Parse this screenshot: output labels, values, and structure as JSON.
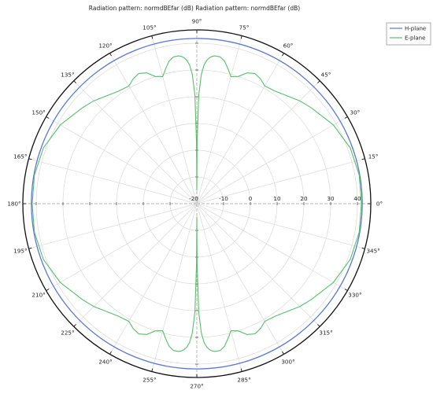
{
  "chart_data": {
    "type": "polar-line",
    "title": "Radiation pattern: normdBEfar (dB) Radiation pattern: normdBEfar (dB)",
    "angle_unit": "deg",
    "angle_ticks": [
      0,
      15,
      30,
      45,
      60,
      75,
      90,
      105,
      120,
      135,
      150,
      165,
      180,
      195,
      210,
      225,
      240,
      255,
      270,
      285,
      300,
      315,
      330,
      345
    ],
    "angle_tick_labels": [
      "0°",
      "15°",
      "30°",
      "45°",
      "60°",
      "75°",
      "90°",
      "105°",
      "120°",
      "135°",
      "150°",
      "165°",
      "180°",
      "195°",
      "210°",
      "225°",
      "240°",
      "255°",
      "270°",
      "285°",
      "300°",
      "315°",
      "330°",
      "345°"
    ],
    "r_range": [
      -20,
      45
    ],
    "r_ticks": [
      -20,
      -10,
      0,
      10,
      20,
      30,
      40
    ],
    "r_tick_labels": [
      "-20",
      "-10",
      "0",
      "10",
      "20",
      "30",
      "40"
    ],
    "grid": true,
    "legend_position": "top-right",
    "colors": {
      "h_plane": "#5b78d6",
      "e_plane": "#55c16a"
    },
    "series": [
      {
        "name": "H-plane",
        "angles": [
          0,
          90,
          180,
          270
        ],
        "values": [
          41.8,
          41.8,
          41.8,
          41.8
        ],
        "note_constant": true
      },
      {
        "name": "E-plane",
        "angles": [
          0,
          10,
          20,
          30,
          40,
          45,
          50,
          55,
          60,
          63,
          66,
          69,
          72,
          75,
          77,
          79,
          81,
          83,
          84,
          85,
          86,
          87,
          88,
          89,
          89.7,
          90,
          90.3,
          91,
          92,
          93,
          94,
          95,
          96,
          97,
          99,
          101,
          103,
          105,
          108,
          111,
          114,
          117,
          120,
          125,
          130,
          135,
          140,
          150,
          160,
          170,
          180,
          190,
          200,
          210,
          220,
          225,
          230,
          235,
          240,
          243,
          246,
          249,
          252,
          255,
          257,
          259,
          261,
          263,
          264,
          265,
          266,
          267,
          268,
          269,
          269.7,
          270,
          270.3,
          271,
          272,
          273,
          274,
          275,
          276,
          277,
          279,
          281,
          283,
          285,
          288,
          291,
          294,
          297,
          300,
          305,
          310,
          315,
          320,
          330,
          340,
          350,
          360
        ],
        "values": [
          41.5,
          41.6,
          41.0,
          38.9,
          35.8,
          34.4,
          32.6,
          31.3,
          30.8,
          32.4,
          33.3,
          32.4,
          30.0,
          29.2,
          31.8,
          34.3,
          35.6,
          35.7,
          35.4,
          34.8,
          33.8,
          32.0,
          28.4,
          20.5,
          3.0,
          -15.0,
          3.0,
          20.5,
          28.4,
          32.0,
          33.8,
          34.8,
          35.4,
          35.7,
          35.6,
          34.3,
          31.8,
          29.2,
          30.0,
          32.4,
          33.3,
          32.4,
          30.8,
          31.3,
          32.6,
          34.4,
          35.8,
          38.9,
          41.0,
          41.6,
          41.5,
          41.6,
          41.0,
          38.9,
          35.8,
          34.4,
          32.6,
          31.3,
          30.8,
          32.4,
          33.3,
          32.4,
          30.0,
          29.2,
          31.8,
          34.3,
          35.6,
          35.7,
          35.4,
          34.8,
          33.8,
          32.0,
          28.4,
          20.5,
          3.0,
          -15.0,
          3.0,
          20.5,
          28.4,
          32.0,
          33.8,
          34.8,
          35.4,
          35.7,
          35.6,
          34.3,
          31.8,
          29.2,
          30.0,
          32.4,
          33.3,
          32.4,
          30.8,
          31.3,
          32.6,
          34.4,
          35.8,
          38.9,
          41.0,
          41.6,
          41.5
        ]
      }
    ]
  }
}
